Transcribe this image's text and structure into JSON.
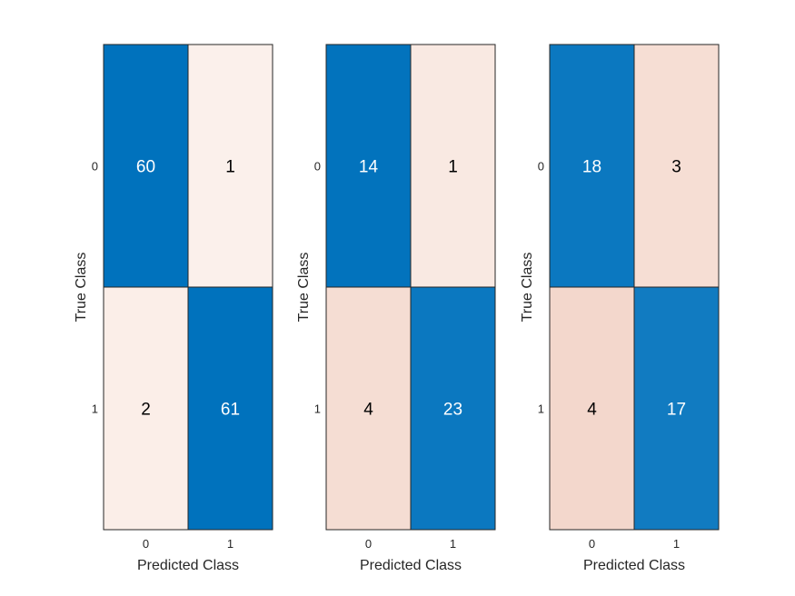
{
  "chart_data": [
    {
      "type": "heatmap",
      "xlabel": "Predicted Class",
      "ylabel": "True Class",
      "x_categories": [
        "0",
        "1"
      ],
      "y_categories": [
        "0",
        "1"
      ],
      "matrix": [
        [
          60,
          1
        ],
        [
          2,
          61
        ]
      ]
    },
    {
      "type": "heatmap",
      "xlabel": "Predicted Class",
      "ylabel": "True Class",
      "x_categories": [
        "0",
        "1"
      ],
      "y_categories": [
        "0",
        "1"
      ],
      "matrix": [
        [
          14,
          1
        ],
        [
          4,
          23
        ]
      ]
    },
    {
      "type": "heatmap",
      "xlabel": "Predicted Class",
      "ylabel": "True Class",
      "x_categories": [
        "0",
        "1"
      ],
      "y_categories": [
        "0",
        "1"
      ],
      "matrix": [
        [
          18,
          3
        ],
        [
          4,
          17
        ]
      ]
    }
  ],
  "colors": {
    "diagonal_high": "#0072bd",
    "diagonal_low": "#62a6d6",
    "off_diagonal_high": "#f3d6ca",
    "off_diagonal_low": "#fcf2ee",
    "light_text": "#ffffff",
    "dark_text": "#000000"
  }
}
